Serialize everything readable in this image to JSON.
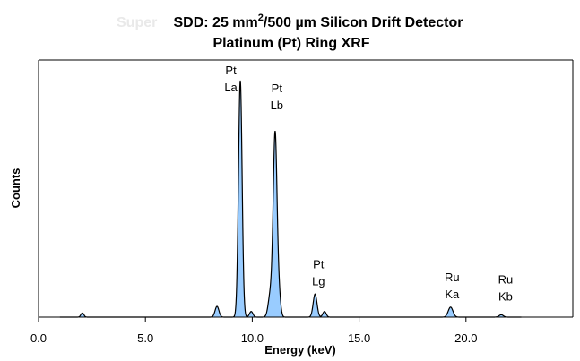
{
  "chart_data": {
    "type": "area",
    "title_ghost": "Super",
    "title_line1_a": "SDD: 25 mm",
    "title_line1_sup": "2",
    "title_line1_b": "/500 µm Silicon Drift Detector",
    "title_line2": "Platinum (Pt) Ring XRF",
    "xlabel": "Energy (keV)",
    "ylabel": "Counts",
    "xlim": [
      0,
      25
    ],
    "ylim": [
      0,
      100
    ],
    "x_ticks": [
      "0.0",
      "5.0",
      "10.0",
      "15.0",
      "20.0"
    ],
    "x_tick_values": [
      0,
      5,
      10,
      15,
      20
    ],
    "fill_color": "#99ccff",
    "line_color": "#000000",
    "peaks": [
      {
        "center": 2.05,
        "height": 1.6,
        "width": 0.07
      },
      {
        "center": 8.35,
        "height": 4.2,
        "width": 0.09
      },
      {
        "center": 9.44,
        "height": 92.0,
        "width": 0.085
      },
      {
        "center": 9.95,
        "height": 2.2,
        "width": 0.08
      },
      {
        "center": 10.85,
        "height": 9.0,
        "width": 0.1
      },
      {
        "center": 11.07,
        "height": 71.0,
        "width": 0.09
      },
      {
        "center": 11.25,
        "height": 8.0,
        "width": 0.08
      },
      {
        "center": 12.94,
        "height": 9.0,
        "width": 0.09
      },
      {
        "center": 13.38,
        "height": 2.2,
        "width": 0.08
      },
      {
        "center": 19.28,
        "height": 3.9,
        "width": 0.11
      },
      {
        "center": 21.65,
        "height": 0.9,
        "width": 0.1
      }
    ],
    "annotations": [
      {
        "line1": "Pt",
        "line2": "La",
        "x": 9.0,
        "y": 94.5
      },
      {
        "line1": "Pt",
        "line2": "Lb",
        "x": 11.15,
        "y": 87.5
      },
      {
        "line1": "Pt",
        "line2": "Lg",
        "x": 13.1,
        "y": 19.0
      },
      {
        "line1": "Ru",
        "line2": "Ka",
        "x": 19.35,
        "y": 14.0
      },
      {
        "line1": "Ru",
        "line2": "Kb",
        "x": 21.85,
        "y": 13.0
      }
    ]
  }
}
